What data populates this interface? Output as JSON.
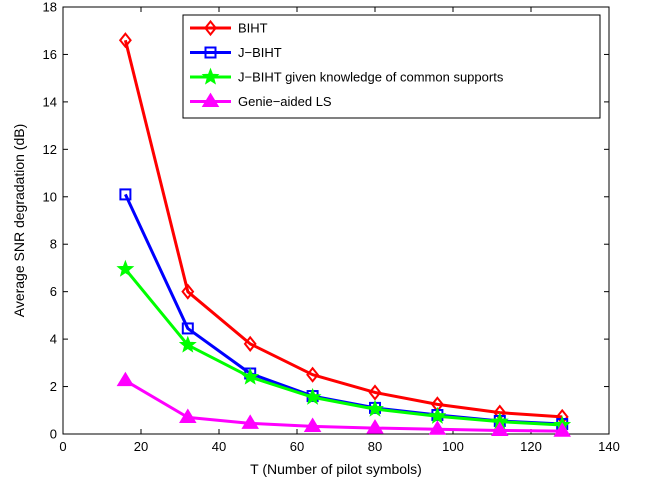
{
  "chart_data": {
    "type": "line",
    "xlabel": "T (Number of pilot symbols)",
    "ylabel": "Average SNR degradation (dB)",
    "xlim": [
      0,
      140
    ],
    "ylim": [
      0,
      18
    ],
    "xticks": [
      0,
      20,
      40,
      60,
      80,
      100,
      120,
      140
    ],
    "yticks": [
      0,
      2,
      4,
      6,
      8,
      10,
      12,
      14,
      16,
      18
    ],
    "grid": false,
    "legend_position": "top-right",
    "x": [
      16,
      32,
      48,
      64,
      80,
      96,
      112,
      128
    ],
    "series": [
      {
        "name": "BIHT",
        "color": "#ff0000",
        "marker": "diamond",
        "values": [
          16.6,
          6.0,
          3.8,
          2.5,
          1.75,
          1.25,
          0.9,
          0.72
        ]
      },
      {
        "name": "J−BIHT",
        "color": "#0000ff",
        "marker": "square",
        "values": [
          10.1,
          4.45,
          2.55,
          1.6,
          1.1,
          0.8,
          0.55,
          0.42
        ]
      },
      {
        "name": "J−BIHT given knowledge of common supports",
        "color": "#00ff00",
        "marker": "star",
        "values": [
          6.95,
          3.75,
          2.4,
          1.55,
          1.05,
          0.75,
          0.52,
          0.38
        ]
      },
      {
        "name": "Genie−aided LS",
        "color": "#ff00ff",
        "marker": "triangle",
        "values": [
          2.25,
          0.7,
          0.45,
          0.32,
          0.25,
          0.2,
          0.15,
          0.12
        ]
      }
    ]
  }
}
